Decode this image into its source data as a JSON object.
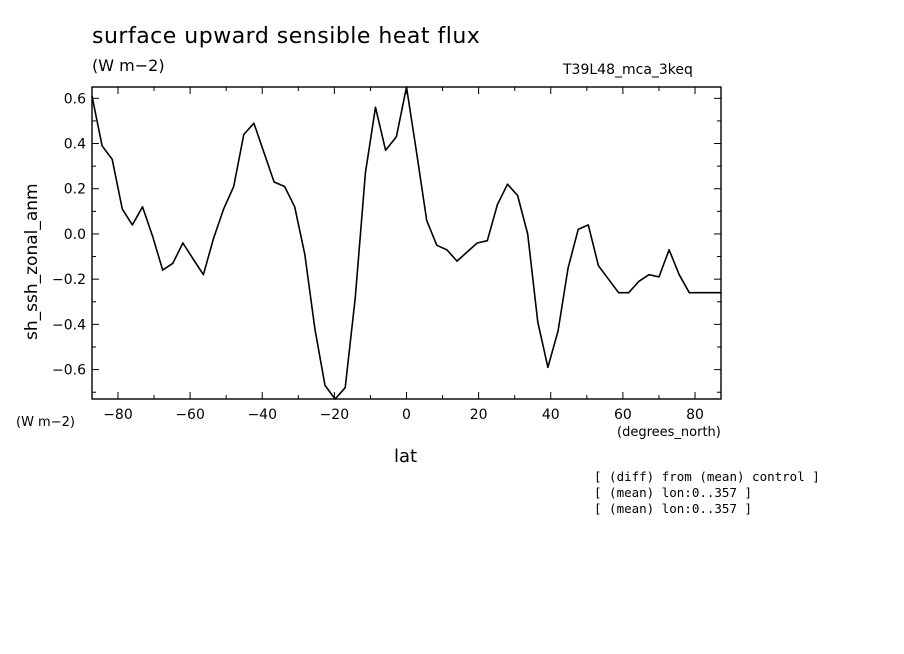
{
  "header": {
    "title": "surface upward sensible heat flux",
    "units": "(W m−2)",
    "run_id": "T39L48_mca_3keq"
  },
  "units_left": "(W m−2)",
  "x_units": "(degrees_north)",
  "notes": [
    "[ (diff) from (mean) control ]",
    "[ (mean) lon:0..357 ]",
    "[ (mean) lon:0..357 ]"
  ],
  "chart_data": {
    "type": "line",
    "title": "surface upward sensible heat flux",
    "xlabel": "lat",
    "ylabel": "sh_ssh_zonal_anm",
    "xlim": [
      -87.2,
      87.2
    ],
    "ylim": [
      -0.73,
      0.65
    ],
    "xticks": [
      -80,
      -60,
      -40,
      -20,
      0,
      20,
      40,
      60,
      80
    ],
    "xtick_labels": [
      "−80",
      "−60",
      "−40",
      "−20",
      "0",
      "20",
      "40",
      "60",
      "80"
    ],
    "yticks": [
      0.6,
      0.4,
      0.2,
      0.0,
      -0.2,
      -0.4,
      -0.6
    ],
    "ytick_labels": [
      "0.6",
      "0.4",
      "0.2",
      "0.0",
      "−0.2",
      "−0.4",
      "−0.6"
    ],
    "grid": false,
    "series": [
      {
        "x": [
          -87.2,
          -84.4,
          -81.6,
          -78.8,
          -76.0,
          -73.2,
          -70.4,
          -67.6,
          -64.8,
          -62.0,
          -59.2,
          -56.3,
          -53.5,
          -50.7,
          -47.9,
          -45.1,
          -42.3,
          -39.5,
          -36.7,
          -33.8,
          -31.0,
          -28.2,
          -25.4,
          -22.6,
          -19.8,
          -17.0,
          -14.2,
          -11.4,
          -8.6,
          -5.8,
          -2.8,
          0.0,
          2.8,
          5.6,
          8.4,
          11.2,
          14.0,
          16.8,
          19.6,
          22.4,
          25.2,
          28.0,
          30.8,
          33.6,
          36.4,
          39.2,
          42.0,
          44.8,
          47.6,
          50.4,
          53.2,
          56.0,
          58.8,
          61.6,
          64.4,
          67.2,
          70.0,
          72.8,
          75.6,
          78.4,
          81.2,
          84.0,
          87.2
        ],
        "y": [
          0.61,
          0.39,
          0.33,
          0.11,
          0.04,
          0.12,
          -0.01,
          -0.16,
          -0.13,
          -0.04,
          -0.11,
          -0.18,
          -0.02,
          0.11,
          0.21,
          0.44,
          0.49,
          0.36,
          0.23,
          0.21,
          0.12,
          -0.09,
          -0.42,
          -0.67,
          -0.73,
          -0.68,
          -0.28,
          0.27,
          0.56,
          0.37,
          0.43,
          0.65,
          0.36,
          0.06,
          -0.05,
          -0.07,
          -0.12,
          -0.08,
          -0.04,
          -0.03,
          0.13,
          0.22,
          0.17,
          0.0,
          -0.39,
          -0.59,
          -0.43,
          -0.15,
          0.02,
          0.04,
          -0.14,
          -0.2,
          -0.26,
          -0.26,
          -0.21,
          -0.18,
          -0.19,
          -0.07,
          -0.18,
          -0.26,
          -0.26,
          -0.26,
          -0.26
        ]
      }
    ]
  }
}
